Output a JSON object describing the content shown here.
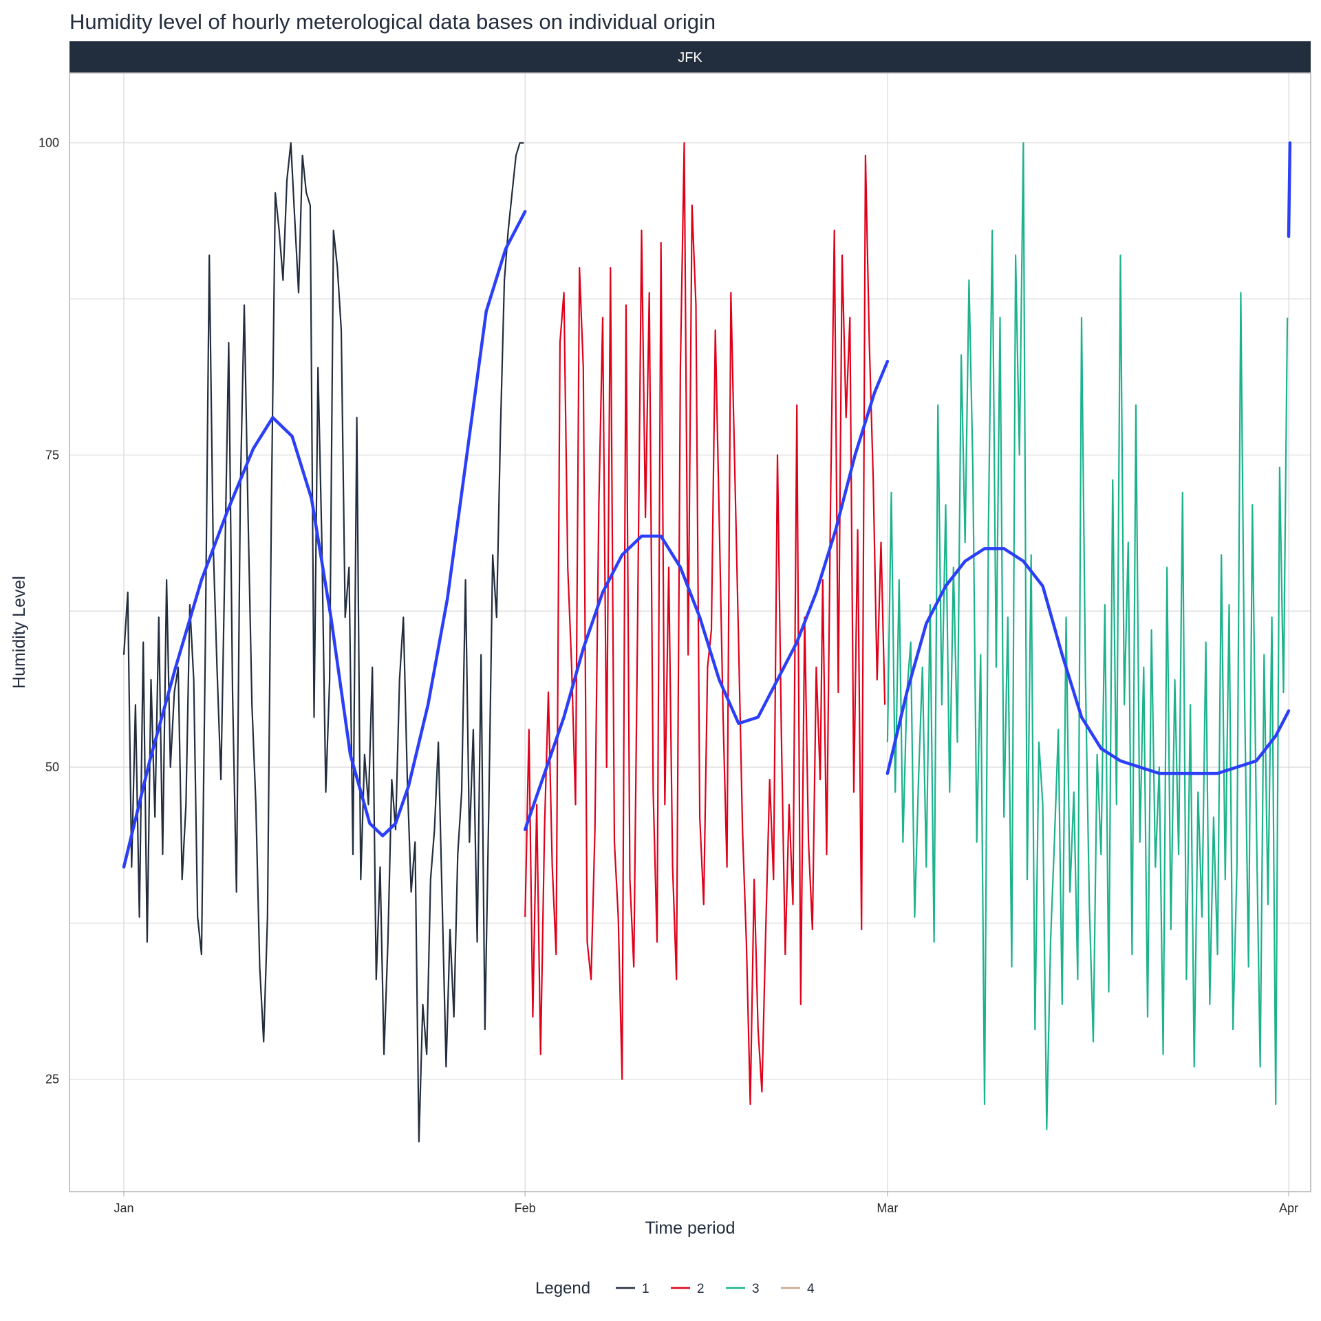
{
  "chart_data": {
    "type": "line",
    "title": "Humidity level of hourly meterological data bases on individual origin",
    "facet_label": "JFK",
    "xlabel": "Time period",
    "ylabel": "Humidity Level",
    "x_ticks": [
      "Jan",
      "Feb",
      "Mar",
      "Apr"
    ],
    "y_ticks": [
      25,
      50,
      75,
      100
    ],
    "xlim_days": [
      -4.2,
      91.7
    ],
    "ylim": [
      16,
      105.6
    ],
    "x_tick_days": [
      0,
      31,
      59,
      90
    ],
    "grid": true,
    "legend_position": "bottom",
    "legend_title": "Legend",
    "series": [
      {
        "name": "1",
        "color": "#222d3d",
        "x": [
          0.0,
          0.3,
          0.6,
          0.9,
          1.2,
          1.5,
          1.8,
          2.1,
          2.4,
          2.7,
          3.0,
          3.3,
          3.6,
          3.9,
          4.2,
          4.5,
          4.8,
          5.1,
          5.4,
          5.7,
          6.0,
          6.3,
          6.6,
          6.9,
          7.2,
          7.5,
          7.8,
          8.1,
          8.4,
          8.7,
          9.0,
          9.3,
          9.6,
          9.9,
          10.2,
          10.5,
          10.8,
          11.1,
          11.4,
          11.7,
          12.0,
          12.3,
          12.6,
          12.9,
          13.2,
          13.5,
          13.8,
          14.1,
          14.4,
          14.7,
          15.0,
          15.3,
          15.6,
          15.9,
          16.2,
          16.5,
          16.8,
          17.1,
          17.4,
          17.7,
          18.0,
          18.3,
          18.6,
          18.9,
          19.2,
          19.5,
          19.8,
          20.1,
          20.4,
          20.7,
          21.0,
          21.3,
          21.6,
          21.9,
          22.2,
          22.5,
          22.8,
          23.1,
          23.4,
          23.7,
          24.0,
          24.3,
          24.6,
          24.9,
          25.2,
          25.5,
          25.8,
          26.1,
          26.4,
          26.7,
          27.0,
          27.3,
          27.6,
          27.9,
          28.2,
          28.5,
          28.8,
          29.1,
          29.4,
          29.7,
          30.0,
          30.3,
          30.6,
          30.9
        ],
        "values": [
          59,
          64,
          42,
          55,
          38,
          60,
          36,
          57,
          46,
          62,
          43,
          65,
          50,
          56,
          58,
          41,
          47,
          63,
          57,
          38,
          35,
          60,
          91,
          68,
          58,
          49,
          66,
          84,
          56,
          40,
          72,
          87,
          70,
          55,
          47,
          34,
          28,
          38,
          71,
          96,
          93,
          89,
          97,
          100,
          94,
          88,
          99,
          96,
          95,
          54,
          82,
          68,
          48,
          57,
          93,
          90,
          85,
          62,
          66,
          43,
          78,
          41,
          51,
          47,
          58,
          33,
          42,
          27,
          36,
          49,
          45,
          57,
          62,
          49,
          40,
          44,
          20,
          31,
          27,
          41,
          45,
          52,
          39,
          26,
          37,
          30,
          43,
          48,
          65,
          44,
          53,
          36,
          59,
          29,
          47,
          67,
          62,
          77,
          89,
          93,
          96,
          99,
          100,
          100
        ]
      },
      {
        "name": "2",
        "color": "#e0001a",
        "x": [
          31.0,
          31.3,
          31.6,
          31.9,
          32.2,
          32.5,
          32.8,
          33.1,
          33.4,
          33.7,
          34.0,
          34.3,
          34.6,
          34.9,
          35.2,
          35.5,
          35.8,
          36.1,
          36.4,
          36.7,
          37.0,
          37.3,
          37.6,
          37.9,
          38.2,
          38.5,
          38.8,
          39.1,
          39.4,
          39.7,
          40.0,
          40.3,
          40.6,
          40.9,
          41.2,
          41.5,
          41.8,
          42.1,
          42.4,
          42.7,
          43.0,
          43.3,
          43.6,
          43.9,
          44.2,
          44.5,
          44.8,
          45.1,
          45.4,
          45.7,
          46.0,
          46.3,
          46.6,
          46.9,
          47.2,
          47.5,
          47.8,
          48.1,
          48.4,
          48.7,
          49.0,
          49.3,
          49.6,
          49.9,
          50.2,
          50.5,
          50.8,
          51.1,
          51.4,
          51.7,
          52.0,
          52.3,
          52.6,
          52.9,
          53.2,
          53.5,
          53.8,
          54.0,
          54.3,
          54.6,
          54.9,
          55.2,
          55.5,
          55.8,
          56.1,
          56.4,
          56.7,
          57.0,
          57.3,
          57.6,
          57.9,
          58.2,
          58.5,
          58.8
        ],
        "values": [
          38,
          53,
          30,
          47,
          27,
          45,
          56,
          42,
          35,
          84,
          88,
          66,
          58,
          47,
          90,
          82,
          36,
          33,
          45,
          71,
          86,
          50,
          90,
          44,
          38,
          25,
          87,
          41,
          34,
          62,
          93,
          70,
          88,
          48,
          36,
          92,
          47,
          66,
          42,
          33,
          82,
          100,
          59,
          95,
          87,
          46,
          39,
          58,
          61,
          85,
          70,
          54,
          42,
          88,
          74,
          60,
          45,
          36,
          23,
          41,
          29,
          24,
          37,
          49,
          41,
          75,
          53,
          35,
          47,
          39,
          79,
          31,
          62,
          44,
          37,
          58,
          49,
          65,
          43,
          71,
          93,
          56,
          91,
          78,
          86,
          48,
          69,
          37,
          99,
          84,
          73,
          57,
          68,
          55
        ]
      },
      {
        "name": "3",
        "color": "#1bb28c",
        "x": [
          59.0,
          59.3,
          59.6,
          59.9,
          60.2,
          60.5,
          60.8,
          61.1,
          61.4,
          61.7,
          62.0,
          62.3,
          62.6,
          62.9,
          63.2,
          63.5,
          63.8,
          64.1,
          64.4,
          64.7,
          65.0,
          65.3,
          65.6,
          65.9,
          66.2,
          66.5,
          66.8,
          67.1,
          67.4,
          67.7,
          68.0,
          68.3,
          68.6,
          68.9,
          69.2,
          69.5,
          69.8,
          70.1,
          70.4,
          70.7,
          71.0,
          71.3,
          71.6,
          71.9,
          72.2,
          72.5,
          72.8,
          73.1,
          73.4,
          73.7,
          74.0,
          74.3,
          74.6,
          74.9,
          75.2,
          75.5,
          75.8,
          76.1,
          76.4,
          76.7,
          77.0,
          77.3,
          77.6,
          77.9,
          78.2,
          78.5,
          78.8,
          79.1,
          79.4,
          79.7,
          80.0,
          80.3,
          80.6,
          80.9,
          81.2,
          81.5,
          81.8,
          82.1,
          82.4,
          82.7,
          83.0,
          83.3,
          83.6,
          83.9,
          84.2,
          84.5,
          84.8,
          85.1,
          85.4,
          85.7,
          86.0,
          86.3,
          86.6,
          86.9,
          87.2,
          87.5,
          87.8,
          88.1,
          88.4,
          88.7,
          89.0,
          89.3,
          89.6,
          89.9
        ],
        "values": [
          52,
          72,
          48,
          65,
          44,
          56,
          60,
          38,
          49,
          58,
          42,
          63,
          36,
          79,
          55,
          71,
          48,
          66,
          52,
          83,
          68,
          89,
          74,
          44,
          59,
          23,
          69,
          93,
          58,
          86,
          46,
          62,
          34,
          91,
          75,
          100,
          41,
          67,
          29,
          52,
          47,
          21,
          36,
          44,
          53,
          31,
          62,
          40,
          48,
          33,
          86,
          57,
          39,
          28,
          51,
          43,
          63,
          32,
          73,
          47,
          91,
          55,
          68,
          35,
          79,
          44,
          58,
          30,
          61,
          42,
          50,
          27,
          66,
          37,
          57,
          43,
          72,
          33,
          55,
          26,
          48,
          38,
          60,
          31,
          46,
          35,
          67,
          41,
          63,
          29,
          42,
          88,
          55,
          34,
          71,
          46,
          26,
          59,
          39,
          62,
          23,
          74,
          56,
          86
        ]
      },
      {
        "name": "4",
        "color": "#c8a687",
        "x": [],
        "values": []
      }
    ],
    "smooth_lines": [
      {
        "color": "#2b3ff7",
        "x": [
          0,
          2,
          4,
          6,
          8,
          10,
          11.5,
          13,
          14.5,
          16,
          17.5,
          19,
          20,
          21,
          22,
          23.5,
          25,
          26.5,
          28,
          29.5,
          31
        ],
        "values": [
          42,
          50.5,
          58,
          65,
          70.5,
          75.5,
          78,
          76.5,
          71.5,
          62,
          51,
          45.5,
          44.5,
          45.5,
          48.5,
          55,
          63.5,
          75,
          86.5,
          91.5,
          94.5
        ]
      },
      {
        "color": "#2b3ff7",
        "x": [
          31,
          32.5,
          34,
          35.5,
          37,
          38.5,
          40,
          41.5,
          43,
          44.5,
          46,
          47.5,
          49,
          50.5,
          52,
          53.5,
          55,
          56.5,
          58,
          59
        ],
        "values": [
          45,
          49.5,
          54,
          59.5,
          64,
          67,
          68.5,
          68.5,
          66,
          62,
          57,
          53.5,
          54,
          57,
          60,
          64,
          69,
          75,
          80,
          82.5
        ]
      },
      {
        "color": "#2b3ff7",
        "x": [
          59,
          60.5,
          62,
          63.5,
          65,
          66.5,
          68,
          69.5,
          71,
          72.5,
          74,
          75.5,
          77,
          78.5,
          80,
          81.5,
          83,
          84.5,
          86,
          87.5,
          89,
          90
        ],
        "values": [
          49.5,
          56,
          61.5,
          64.5,
          66.5,
          67.5,
          67.5,
          66.5,
          64.5,
          59,
          54,
          51.5,
          50.5,
          50,
          49.5,
          49.5,
          49.5,
          49.5,
          50,
          50.5,
          52.5,
          54.5
        ]
      },
      {
        "color": "#2b3ff7",
        "x": [
          90,
          90.1
        ],
        "values": [
          92.5,
          100
        ]
      }
    ]
  }
}
